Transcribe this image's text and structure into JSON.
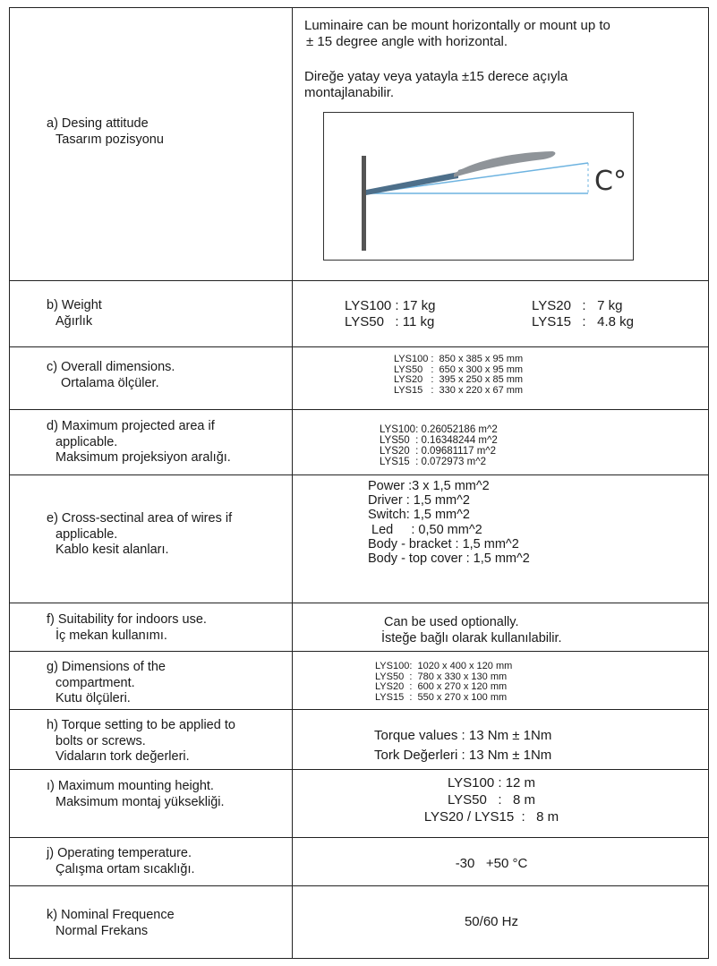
{
  "rows": {
    "a": {
      "label_en": "a) Desing attitude",
      "label_tr": "Tasarım pozisyonu",
      "text_en_1": "Luminaire can be mount horizontally or mount up to",
      "text_en_2": "± 15 degree angle with horizontal.",
      "text_tr_1": "Direğe yatay veya yatayla ±15 derece açıyla",
      "text_tr_2": "montajlanabilir.",
      "angle_symbol": "C°"
    },
    "b": {
      "label_en": "b) Weight",
      "label_tr": "Ağırlık",
      "items": [
        "LYS100 : 17 kg",
        "LYS50   : 11 kg",
        "LYS20   :   7 kg",
        "LYS15   :   4.8 kg"
      ]
    },
    "c": {
      "label_en": "c) Overall dimensions.",
      "label_tr": "Ortalama ölçüler.",
      "items": [
        "LYS100 :  850 x 385 x 95 mm",
        "LYS50   :  650 x 300 x 95 mm",
        "LYS20   :  395 x 250 x 85 mm",
        "LYS15   :  330 x 220 x 67 mm"
      ]
    },
    "d": {
      "label_en_1": "d) Maximum projected area if",
      "label_en_2": "applicable.",
      "label_tr": "Maksimum projeksiyon aralığı.",
      "items": [
        "LYS100: 0.26052186 m^2",
        "LYS50  : 0.16348244 m^2",
        "LYS20  : 0.09681117 m^2",
        "LYS15  : 0.072973 m^2"
      ]
    },
    "e": {
      "label_en_1": "e) Cross-sectinal area of wires if",
      "label_en_2": "applicable.",
      "label_tr": "Kablo kesit alanları.",
      "items": [
        "Power :3 x 1,5 mm^2",
        "Driver : 1,5 mm^2",
        "Switch: 1,5 mm^2",
        " Led     : 0,50 mm^2",
        "Body - bracket : 1,5 mm^2",
        "Body - top cover : 1,5 mm^2"
      ]
    },
    "f": {
      "label_en": "f) Suitability for indoors use.",
      "label_tr": "İç mekan kullanımı.",
      "text_en": "Can be used optionally.",
      "text_tr": "İsteğe bağlı olarak kullanılabilir."
    },
    "g": {
      "label_en_1": "g) Dimensions of the",
      "label_en_2": "compartment.",
      "label_tr": "Kutu ölçüleri.",
      "items": [
        "LYS100:  1020 x 400 x 120 mm",
        "LYS50  :  780 x 330 x 130 mm",
        "LYS20  :  600 x 270 x 120 mm",
        "LYS15  :  550 x 270 x 100 mm"
      ]
    },
    "h": {
      "label_en_1": "h) Torque setting to be applied to",
      "label_en_2": "bolts or screws.",
      "label_tr": "Vidaların tork değerleri.",
      "text_en": "Torque values : 13 Nm ± 1Nm",
      "text_tr": "Tork Değerleri : 13 Nm ± 1Nm"
    },
    "i": {
      "label_en": "ı) Maximum mounting height.",
      "label_tr": "Maksimum montaj yüksekliği.",
      "items": [
        "LYS100 : 12 m",
        "LYS50   :   8 m",
        "LYS20 / LYS15  :   8 m"
      ]
    },
    "j": {
      "label_en": "j) Operating temperature.",
      "label_tr": "Çalışma ortam sıcaklığı.",
      "value": "-30   +50 °C"
    },
    "k": {
      "label_en": "k) Nominal Frequence",
      "label_tr": "Normal Frekans",
      "value": "50/60 Hz"
    }
  }
}
